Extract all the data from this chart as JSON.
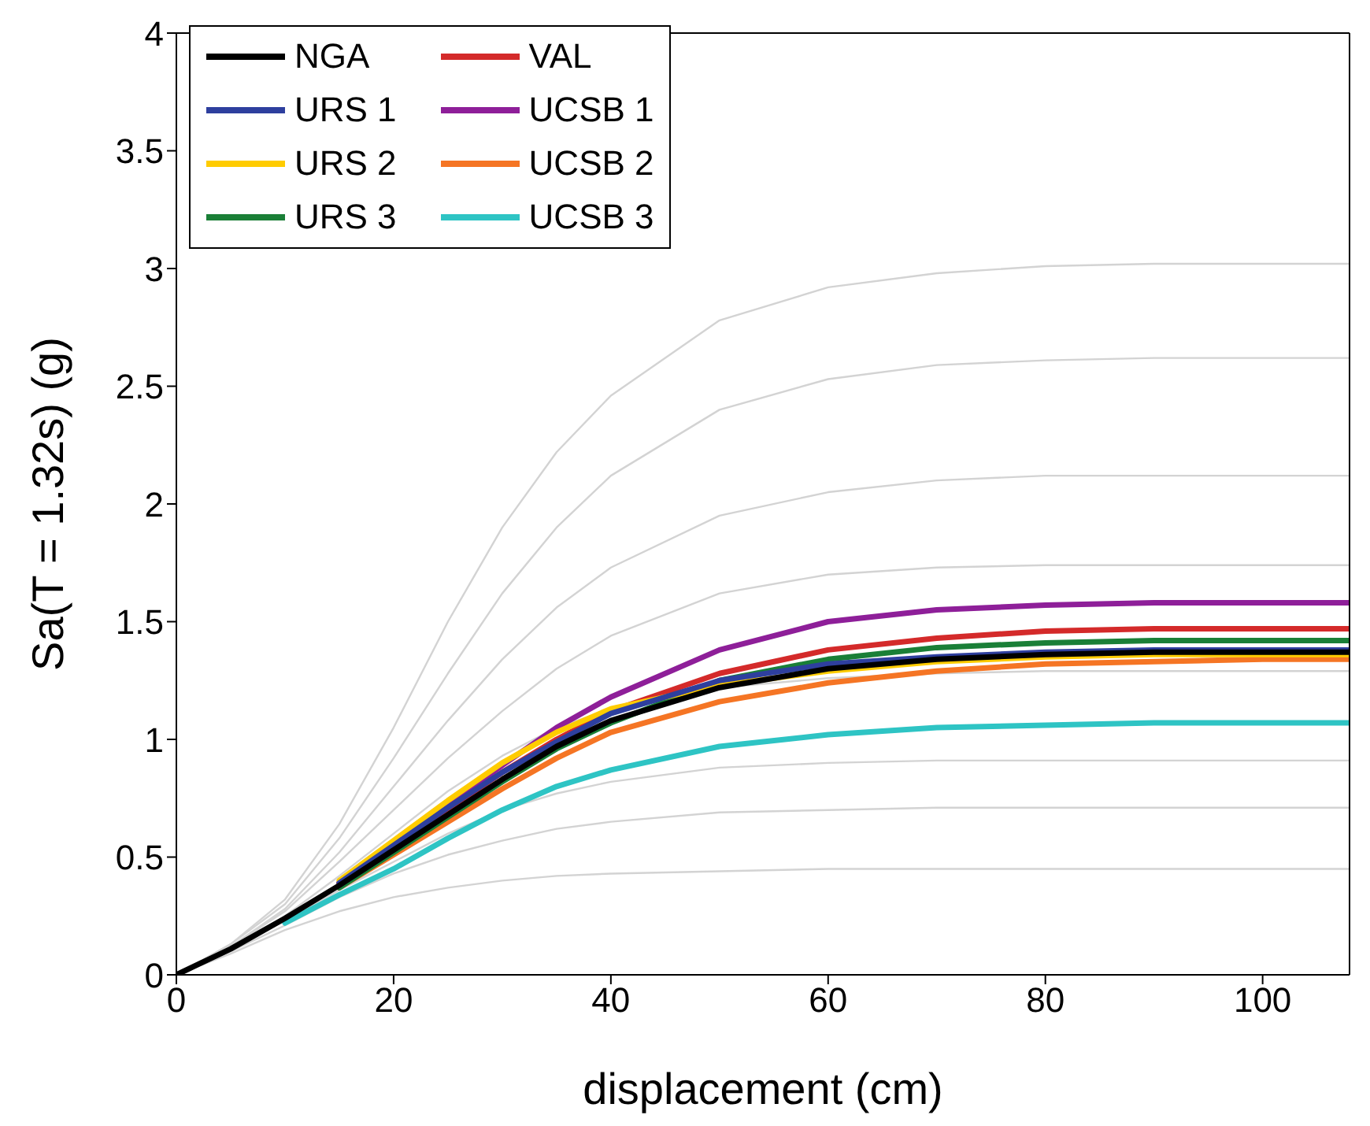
{
  "chart_data": {
    "type": "line",
    "xlabel": "displacement (cm)",
    "ylabel": "Sa(T = 1.32s) (g)",
    "x": [
      0,
      5,
      10,
      15,
      20,
      25,
      30,
      35,
      40,
      50,
      60,
      70,
      80,
      90,
      100,
      108
    ],
    "xlim": [
      0,
      108
    ],
    "xticks": [
      0,
      20,
      40,
      60,
      80,
      100
    ],
    "ylim": [
      0,
      4
    ],
    "yticks": [
      0,
      0.5,
      1,
      1.5,
      2,
      2.5,
      3,
      3.5,
      4
    ],
    "grid": false,
    "legend": "top left",
    "marker": "none",
    "line_style": "solid",
    "series": [
      {
        "color": "#d3d3d3",
        "values": [
          0,
          0.09,
          0.19,
          0.27,
          0.33,
          0.37,
          0.4,
          0.42,
          0.43,
          0.44,
          0.45,
          0.45,
          0.45,
          0.45,
          0.45,
          0.45
        ]
      },
      {
        "color": "#d3d3d3",
        "values": [
          0,
          0.1,
          0.21,
          0.33,
          0.43,
          0.51,
          0.57,
          0.62,
          0.65,
          0.69,
          0.7,
          0.71,
          0.71,
          0.71,
          0.71,
          0.71
        ]
      },
      {
        "color": "#d3d3d3",
        "values": [
          0,
          0.11,
          0.23,
          0.36,
          0.48,
          0.6,
          0.7,
          0.77,
          0.82,
          0.88,
          0.9,
          0.91,
          0.91,
          0.91,
          0.91,
          0.91
        ]
      },
      {
        "color": "#d3d3d3",
        "values": [
          0,
          0.11,
          0.25,
          0.42,
          0.6,
          0.78,
          0.93,
          1.05,
          1.13,
          1.22,
          1.26,
          1.28,
          1.29,
          1.29,
          1.29,
          1.29
        ]
      },
      {
        "color": "#d3d3d3",
        "values": [
          0,
          0.12,
          0.27,
          0.48,
          0.7,
          0.92,
          1.12,
          1.3,
          1.44,
          1.62,
          1.7,
          1.73,
          1.74,
          1.74,
          1.74,
          1.74
        ]
      },
      {
        "color": "#d3d3d3",
        "values": [
          0,
          0.12,
          0.28,
          0.52,
          0.8,
          1.08,
          1.34,
          1.56,
          1.73,
          1.95,
          2.05,
          2.1,
          2.12,
          2.12,
          2.12,
          2.12
        ]
      },
      {
        "color": "#d3d3d3",
        "values": [
          0,
          0.13,
          0.3,
          0.58,
          0.92,
          1.28,
          1.62,
          1.9,
          2.12,
          2.4,
          2.53,
          2.59,
          2.61,
          2.62,
          2.62,
          2.62
        ]
      },
      {
        "color": "#d3d3d3",
        "values": [
          0,
          0.13,
          0.32,
          0.64,
          1.05,
          1.5,
          1.9,
          2.22,
          2.46,
          2.78,
          2.92,
          2.98,
          3.01,
          3.02,
          3.02,
          3.02
        ]
      },
      {
        "name": "NGA",
        "color": "#000000",
        "values": [
          0,
          0.11,
          0.24,
          0.38,
          0.53,
          0.68,
          0.83,
          0.97,
          1.08,
          1.22,
          1.3,
          1.34,
          1.36,
          1.37,
          1.37,
          1.37
        ]
      },
      {
        "name": "URS 1",
        "color": "#2e3f9e",
        "values": [
          null,
          null,
          null,
          0.39,
          0.55,
          0.71,
          0.86,
          0.99,
          1.11,
          1.25,
          1.32,
          1.35,
          1.37,
          1.38,
          1.38,
          1.38
        ]
      },
      {
        "name": "URS 2",
        "color": "#ffcc00",
        "values": [
          null,
          null,
          null,
          0.4,
          0.57,
          0.74,
          0.9,
          1.03,
          1.13,
          1.23,
          1.29,
          1.33,
          1.35,
          1.36,
          1.36,
          1.36
        ]
      },
      {
        "name": "URS 3",
        "color": "#1a7f37",
        "values": [
          null,
          null,
          null,
          0.37,
          0.52,
          0.67,
          0.82,
          0.96,
          1.07,
          1.25,
          1.34,
          1.39,
          1.41,
          1.42,
          1.42,
          1.42
        ]
      },
      {
        "name": "VAL",
        "color": "#d42a2a",
        "values": [
          null,
          null,
          null,
          0.39,
          0.54,
          0.7,
          0.86,
          1.0,
          1.12,
          1.28,
          1.38,
          1.43,
          1.46,
          1.47,
          1.47,
          1.47
        ]
      },
      {
        "name": "UCSB 1",
        "color": "#8e1f99",
        "values": [
          null,
          null,
          null,
          0.39,
          0.55,
          0.72,
          0.89,
          1.05,
          1.18,
          1.38,
          1.5,
          1.55,
          1.57,
          1.58,
          1.58,
          1.58
        ]
      },
      {
        "name": "UCSB 2",
        "color": "#f57524",
        "values": [
          null,
          null,
          null,
          0.37,
          0.51,
          0.65,
          0.79,
          0.92,
          1.03,
          1.16,
          1.24,
          1.29,
          1.32,
          1.33,
          1.34,
          1.34
        ]
      },
      {
        "name": "UCSB 3",
        "color": "#2ec4c4",
        "values": [
          null,
          null,
          0.22,
          0.34,
          0.45,
          0.58,
          0.7,
          0.8,
          0.87,
          0.97,
          1.02,
          1.05,
          1.06,
          1.07,
          1.07,
          1.07
        ]
      }
    ]
  }
}
